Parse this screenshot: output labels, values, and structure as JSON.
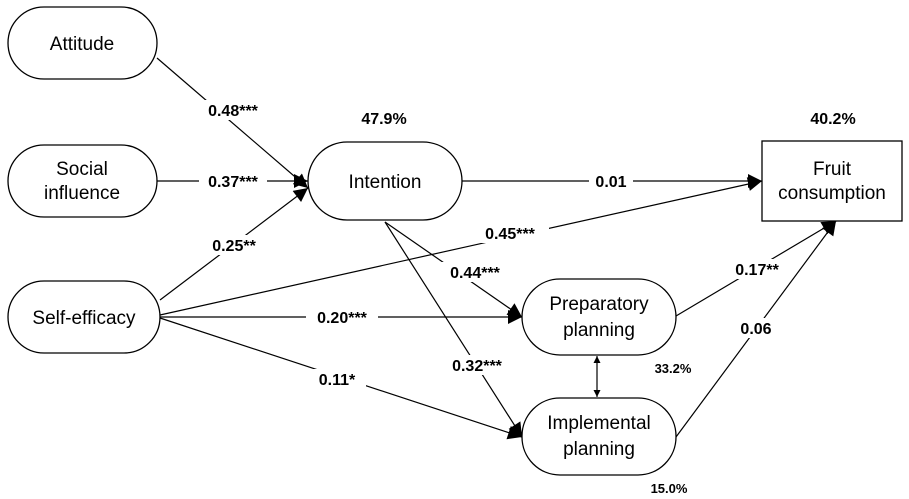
{
  "nodes": {
    "attitude": {
      "lines": [
        "Attitude"
      ]
    },
    "social_influence": {
      "lines": [
        "Social",
        "influence"
      ]
    },
    "self_efficacy": {
      "lines": [
        "Self-efficacy"
      ]
    },
    "intention": {
      "lines": [
        "Intention"
      ]
    },
    "fruit_consumption": {
      "lines": [
        "Fruit",
        "consumption"
      ]
    },
    "preparatory_planning": {
      "lines": [
        "Preparatory",
        "planning"
      ]
    },
    "implemental_planning": {
      "lines": [
        "Implemental",
        "planning"
      ]
    }
  },
  "variance_explained": {
    "intention": "47.9%",
    "fruit_consumption": "40.2%",
    "preparatory_planning": "33.2%",
    "implemental_planning": "15.0%"
  },
  "paths": {
    "attitude_intention": "0.48***",
    "social_influence_intention": "0.37***",
    "self_efficacy_intention": "0.25**",
    "intention_fruit_consumption": "0.01",
    "self_efficacy_fruit_consumption": "0.45***",
    "intention_preparatory_planning": "0.44***",
    "self_efficacy_preparatory_planning": "0.20***",
    "intention_implemental_planning": "0.32***",
    "self_efficacy_implemental_planning": "0.11*",
    "preparatory_planning_fruit_consumption": "0.17**",
    "implemental_planning_fruit_consumption": "0.06"
  }
}
